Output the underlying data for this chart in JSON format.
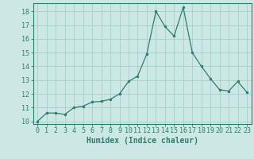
{
  "x": [
    0,
    1,
    2,
    3,
    4,
    5,
    6,
    7,
    8,
    9,
    10,
    11,
    12,
    13,
    14,
    15,
    16,
    17,
    18,
    19,
    20,
    21,
    22,
    23
  ],
  "y": [
    10,
    10.6,
    10.6,
    10.5,
    11.0,
    11.1,
    11.4,
    11.45,
    11.6,
    12.0,
    12.9,
    13.3,
    14.9,
    18.0,
    16.9,
    16.2,
    18.3,
    15.0,
    14.0,
    13.1,
    12.3,
    12.2,
    12.9,
    12.1
  ],
  "line_color": "#2e7d6e",
  "marker": "o",
  "marker_size": 2,
  "bg_color": "#cce8e4",
  "grid_color": "#aacccc",
  "xlabel": "Humidex (Indice chaleur)",
  "xlim": [
    -0.5,
    23.5
  ],
  "ylim": [
    9.8,
    18.6
  ],
  "yticks": [
    10,
    11,
    12,
    13,
    14,
    15,
    16,
    17,
    18
  ],
  "xticks": [
    0,
    1,
    2,
    3,
    4,
    5,
    6,
    7,
    8,
    9,
    10,
    11,
    12,
    13,
    14,
    15,
    16,
    17,
    18,
    19,
    20,
    21,
    22,
    23
  ],
  "tick_color": "#2e7d6e",
  "label_color": "#2e7d6e",
  "axis_color": "#2e7d6e",
  "xlabel_fontsize": 7,
  "tick_fontsize": 6
}
